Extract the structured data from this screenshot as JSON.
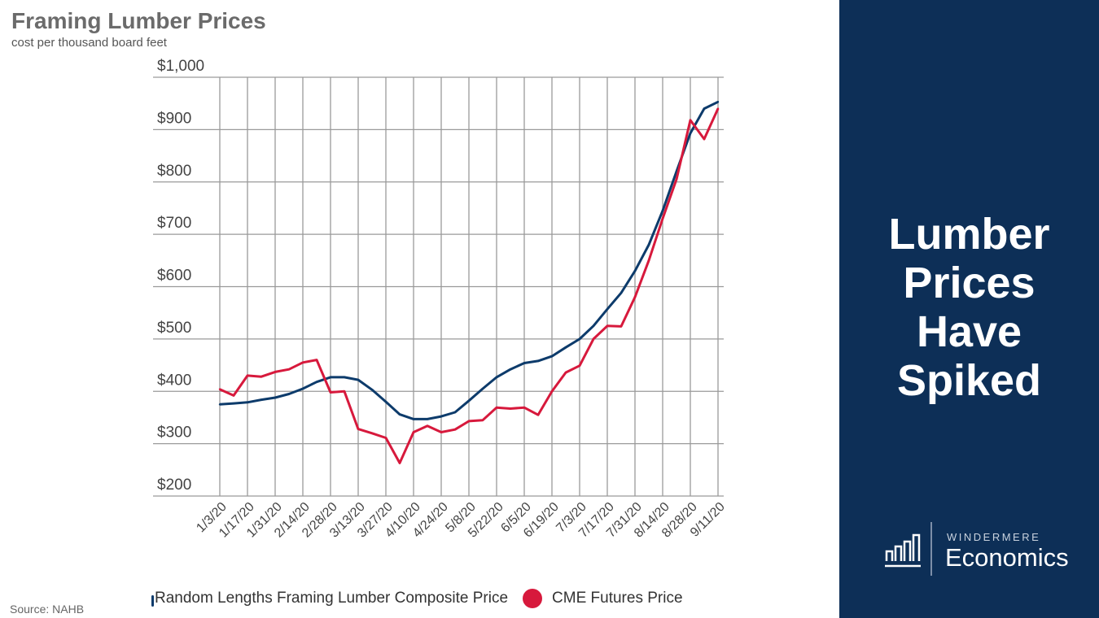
{
  "header": {
    "title": "Framing Lumber Prices",
    "subtitle": "cost per thousand board feet"
  },
  "source": "Source: NAHB",
  "panel": {
    "headline": [
      "Lumber",
      "Prices",
      "Have",
      "Spiked"
    ],
    "logo_top": "WINDERMERE",
    "logo_bottom": "Economics",
    "background": "#0d2f57"
  },
  "chart_data": {
    "type": "line",
    "title": "Framing Lumber Prices",
    "subtitle": "cost per thousand board feet",
    "ylim": [
      200,
      1000
    ],
    "y_ticks": [
      "$200",
      "$300",
      "$400",
      "$500",
      "$600",
      "$700",
      "$800",
      "$900",
      "$1,000"
    ],
    "x_tick_labels": [
      "1/3/20",
      "1/17/20",
      "1/31/20",
      "2/14/20",
      "2/28/20",
      "3/13/20",
      "3/27/20",
      "4/10/20",
      "4/24/20",
      "5/8/20",
      "5/22/20",
      "6/5/20",
      "6/19/20",
      "7/3/20",
      "7/17/20",
      "7/31/20",
      "8/14/20",
      "8/28/20",
      "9/11/20"
    ],
    "x": [
      "1/3/20",
      "1/10/20",
      "1/17/20",
      "1/24/20",
      "1/31/20",
      "2/7/20",
      "2/14/20",
      "2/21/20",
      "2/28/20",
      "3/6/20",
      "3/13/20",
      "3/20/20",
      "3/27/20",
      "4/3/20",
      "4/10/20",
      "4/17/20",
      "4/24/20",
      "5/1/20",
      "5/8/20",
      "5/15/20",
      "5/22/20",
      "5/29/20",
      "6/5/20",
      "6/12/20",
      "6/19/20",
      "6/26/20",
      "7/3/20",
      "7/10/20",
      "7/17/20",
      "7/24/20",
      "7/31/20",
      "8/7/20",
      "8/14/20",
      "8/21/20",
      "8/28/20",
      "9/4/20",
      "9/11/20"
    ],
    "grid": true,
    "legend_position": "bottom",
    "series": [
      {
        "name": "Random Lengths Framing Lumber Composite Price",
        "color": "#0d3b6b",
        "values": [
          375,
          377,
          379,
          384,
          388,
          395,
          405,
          418,
          427,
          427,
          422,
          403,
          380,
          356,
          347,
          347,
          352,
          360,
          382,
          405,
          427,
          442,
          454,
          458,
          467,
          484,
          500,
          525,
          557,
          588,
          630,
          680,
          745,
          820,
          893,
          940,
          953
        ]
      },
      {
        "name": "CME Futures Price",
        "color": "#d7193c",
        "values": [
          404,
          392,
          430,
          428,
          437,
          442,
          455,
          460,
          398,
          400,
          328,
          320,
          311,
          263,
          322,
          334,
          322,
          327,
          343,
          345,
          369,
          367,
          369,
          355,
          400,
          436,
          449,
          500,
          525,
          524,
          580,
          650,
          730,
          805,
          918,
          882,
          940
        ]
      }
    ]
  }
}
